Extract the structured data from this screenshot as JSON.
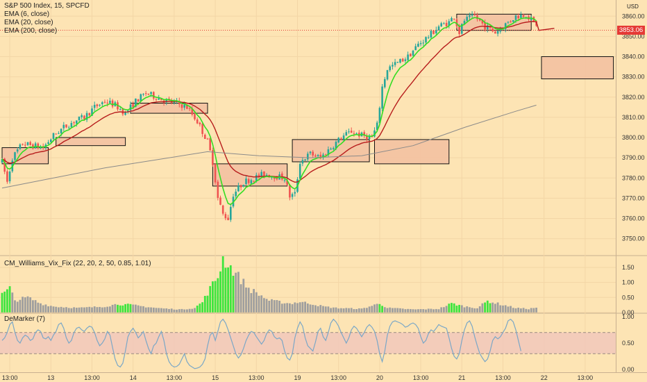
{
  "legend": {
    "symbol": "S&P 500 Index, 15, SPCFD",
    "ema6": "EMA (6, close)",
    "ema20": "EMA (20, close)",
    "ema200": "EMA (200, close)",
    "vix": "CM_Williams_Vix_Fix (22, 20, 2, 50, 0.85, 1.01)",
    "demarker": "DeMarker (7)"
  },
  "axis": {
    "currency": "USD",
    "last_price": "3853.06"
  },
  "colors": {
    "background": "#fde4b4",
    "up": "#26a69a",
    "down": "#ef5350",
    "ema6": "#33dd22",
    "ema20": "#b71c1c",
    "ema200": "#8a8a8a",
    "box_fill": "#f2bfa0",
    "vix_gray": "#9e9e9e",
    "vix_green": "#3ee53e",
    "demarker_line": "#7aa7c7",
    "demarker_band": "#f0c6bc"
  },
  "chart_data": [
    {
      "type": "candlestick",
      "title": "S&P 500 Index, 15, SPCFD",
      "ylim": [
        3743,
        3868
      ],
      "yticks": [
        3750,
        3760,
        3770,
        3780,
        3790,
        3800,
        3810,
        3820,
        3830,
        3840,
        3850,
        3860
      ],
      "ytick_labels": [
        "3750.00",
        "3760.00",
        "3770.00",
        "3780.00",
        "3790.00",
        "3800.00",
        "3810.00",
        "3820.00",
        "3830.00",
        "3840.00",
        "3850.00",
        "3860.00"
      ],
      "xtick_labels": [
        "13:00",
        "13",
        "13:00",
        "14",
        "13:00",
        "15",
        "13:00",
        "19",
        "13:00",
        "20",
        "13:00",
        "21",
        "13:00",
        "22",
        "13:00"
      ],
      "xtick_index": [
        3,
        19,
        35,
        51,
        67,
        83,
        99,
        115,
        131,
        147,
        163,
        179,
        195,
        211,
        227
      ],
      "bars": 209,
      "price_path": [
        [
          0,
          3788
        ],
        [
          2,
          3778
        ],
        [
          4,
          3790
        ],
        [
          8,
          3797
        ],
        [
          12,
          3796
        ],
        [
          16,
          3795
        ],
        [
          20,
          3801
        ],
        [
          24,
          3805
        ],
        [
          28,
          3808
        ],
        [
          32,
          3810
        ],
        [
          36,
          3815
        ],
        [
          40,
          3818
        ],
        [
          44,
          3816
        ],
        [
          48,
          3812
        ],
        [
          52,
          3818
        ],
        [
          56,
          3822
        ],
        [
          60,
          3820
        ],
        [
          64,
          3818
        ],
        [
          68,
          3817
        ],
        [
          72,
          3815
        ],
        [
          76,
          3808
        ],
        [
          80,
          3798
        ],
        [
          82,
          3788
        ],
        [
          84,
          3770
        ],
        [
          86,
          3762
        ],
        [
          88,
          3760
        ],
        [
          90,
          3772
        ],
        [
          94,
          3778
        ],
        [
          98,
          3780
        ],
        [
          102,
          3782
        ],
        [
          106,
          3781
        ],
        [
          110,
          3780
        ],
        [
          112,
          3771
        ],
        [
          114,
          3772
        ],
        [
          116,
          3788
        ],
        [
          120,
          3792
        ],
        [
          124,
          3790
        ],
        [
          128,
          3795
        ],
        [
          132,
          3800
        ],
        [
          136,
          3803
        ],
        [
          140,
          3801
        ],
        [
          144,
          3800
        ],
        [
          146,
          3806
        ],
        [
          148,
          3825
        ],
        [
          150,
          3834
        ],
        [
          154,
          3837
        ],
        [
          158,
          3840
        ],
        [
          162,
          3846
        ],
        [
          166,
          3850
        ],
        [
          170,
          3855
        ],
        [
          174,
          3857
        ],
        [
          176,
          3860
        ],
        [
          178,
          3852
        ],
        [
          180,
          3858
        ],
        [
          184,
          3860
        ],
        [
          188,
          3855
        ],
        [
          192,
          3852
        ],
        [
          196,
          3856
        ],
        [
          200,
          3860
        ],
        [
          204,
          3861
        ],
        [
          206,
          3858
        ],
        [
          208,
          3856
        ]
      ],
      "ema200_path": [
        [
          0,
          3775
        ],
        [
          40,
          3785
        ],
        [
          80,
          3793
        ],
        [
          100,
          3791
        ],
        [
          120,
          3790
        ],
        [
          140,
          3791
        ],
        [
          160,
          3796
        ],
        [
          180,
          3805
        ],
        [
          200,
          3813
        ],
        [
          208,
          3816
        ]
      ],
      "ema20_end": [
        209,
        3853
      ],
      "last_price": 3853.06,
      "boxes": [
        {
          "i0": 0,
          "i1": 18,
          "hi": 3795,
          "lo": 3787
        },
        {
          "i0": 21,
          "i1": 48,
          "hi": 3800,
          "lo": 3796
        },
        {
          "i0": 50,
          "i1": 80,
          "hi": 3817,
          "lo": 3812
        },
        {
          "i0": 82,
          "i1": 111,
          "hi": 3787,
          "lo": 3776
        },
        {
          "i0": 113,
          "i1": 143,
          "hi": 3799,
          "lo": 3788
        },
        {
          "i0": 145,
          "i1": 174,
          "hi": 3799,
          "lo": 3787
        },
        {
          "i0": 177,
          "i1": 206,
          "hi": 3861,
          "lo": 3853
        },
        {
          "i0": 210,
          "i1": 238,
          "hi": 3840,
          "lo": 3829
        }
      ]
    },
    {
      "type": "bar",
      "title": "CM_Williams_Vix_Fix (22, 20, 2, 50, 0.85, 1.01)",
      "ylim": [
        -0.05,
        1.85
      ],
      "yticks": [
        0,
        0.5,
        1,
        1.5
      ],
      "ytick_labels": [
        "0.00",
        "0.50",
        "1.00",
        "1.50"
      ],
      "green_ranges": [
        [
          0,
          3
        ],
        [
          45,
          50
        ],
        [
          76,
          90
        ],
        [
          147,
          148
        ],
        [
          174,
          178
        ],
        [
          188,
          190
        ]
      ],
      "value_path": [
        [
          0,
          0.6
        ],
        [
          3,
          0.8
        ],
        [
          5,
          0.4
        ],
        [
          10,
          0.5
        ],
        [
          15,
          0.3
        ],
        [
          20,
          0.2
        ],
        [
          30,
          0.15
        ],
        [
          40,
          0.2
        ],
        [
          45,
          0.28
        ],
        [
          50,
          0.25
        ],
        [
          55,
          0.2
        ],
        [
          60,
          0.15
        ],
        [
          65,
          0.12
        ],
        [
          70,
          0.1
        ],
        [
          75,
          0.15
        ],
        [
          78,
          0.35
        ],
        [
          81,
          0.8
        ],
        [
          84,
          1.2
        ],
        [
          86,
          1.8
        ],
        [
          88,
          1.6
        ],
        [
          90,
          1.4
        ],
        [
          92,
          1.2
        ],
        [
          94,
          1.0
        ],
        [
          96,
          0.8
        ],
        [
          100,
          0.6
        ],
        [
          104,
          0.4
        ],
        [
          108,
          0.35
        ],
        [
          112,
          0.3
        ],
        [
          116,
          0.35
        ],
        [
          120,
          0.3
        ],
        [
          125,
          0.2
        ],
        [
          130,
          0.15
        ],
        [
          140,
          0.12
        ],
        [
          147,
          0.3
        ],
        [
          150,
          0.15
        ],
        [
          160,
          0.1
        ],
        [
          170,
          0.12
        ],
        [
          175,
          0.3
        ],
        [
          180,
          0.2
        ],
        [
          185,
          0.15
        ],
        [
          189,
          0.38
        ],
        [
          195,
          0.25
        ],
        [
          200,
          0.15
        ],
        [
          205,
          0.12
        ],
        [
          209,
          0.18
        ]
      ]
    },
    {
      "type": "line",
      "title": "DeMarker (7)",
      "ylim": [
        -0.05,
        1.05
      ],
      "yticks": [
        0,
        0.5,
        1
      ],
      "ytick_labels": [
        "0.00",
        "0.50",
        "1.00"
      ],
      "bands": [
        0.3,
        0.7
      ],
      "values": [
        0.55,
        0.6,
        0.7,
        0.85,
        0.9,
        0.7,
        0.55,
        0.5,
        0.6,
        0.65,
        0.62,
        0.55,
        0.58,
        0.7,
        0.75,
        0.72,
        0.6,
        0.58,
        0.62,
        0.55,
        0.65,
        0.72,
        0.85,
        0.88,
        0.78,
        0.6,
        0.5,
        0.55,
        0.7,
        0.78,
        0.8,
        0.75,
        0.72,
        0.78,
        0.82,
        0.8,
        0.7,
        0.55,
        0.45,
        0.5,
        0.58,
        0.72,
        0.65,
        0.42,
        0.2,
        0.08,
        0.05,
        0.12,
        0.35,
        0.62,
        0.72,
        0.78,
        0.7,
        0.6,
        0.65,
        0.72,
        0.55,
        0.4,
        0.3,
        0.45,
        0.5,
        0.62,
        0.72,
        0.55,
        0.3,
        0.15,
        0.08,
        0.05,
        0.06,
        0.1,
        0.2,
        0.3,
        0.15,
        0.08,
        0.05,
        0.02,
        0.03,
        0.05,
        0.1,
        0.2,
        0.45,
        0.65,
        0.7,
        0.55,
        0.72,
        0.9,
        0.95,
        0.88,
        0.75,
        0.6,
        0.45,
        0.3,
        0.22,
        0.28,
        0.4,
        0.55,
        0.65,
        0.72,
        0.7,
        0.62,
        0.55,
        0.48,
        0.55,
        0.68,
        0.75,
        0.72,
        0.62,
        0.58,
        0.6,
        0.55,
        0.35,
        0.22,
        0.18,
        0.3,
        0.6,
        0.78,
        0.9,
        0.82,
        0.6,
        0.45,
        0.4,
        0.35,
        0.52,
        0.72,
        0.78,
        0.62,
        0.55,
        0.7,
        0.88,
        0.95,
        0.9,
        0.82,
        0.7,
        0.6,
        0.5,
        0.6,
        0.75,
        0.82,
        0.78,
        0.7,
        0.62,
        0.7,
        0.8,
        0.85,
        0.8,
        0.72,
        0.55,
        0.3,
        0.15,
        0.35,
        0.65,
        0.82,
        0.9,
        0.92,
        0.9,
        0.88,
        0.85,
        0.8,
        0.82,
        0.86,
        0.88,
        0.85,
        0.78,
        0.62,
        0.5,
        0.55,
        0.68,
        0.75,
        0.72,
        0.78,
        0.85,
        0.82,
        0.8,
        0.78,
        0.6,
        0.4,
        0.25,
        0.2,
        0.3,
        0.55,
        0.75,
        0.88,
        0.92,
        0.82,
        0.62,
        0.45,
        0.3,
        0.22,
        0.15,
        0.2,
        0.35,
        0.55,
        0.62,
        0.58,
        0.62,
        0.7,
        0.78,
        0.92,
        0.95,
        0.9,
        0.75,
        0.55,
        0.35
      ]
    }
  ]
}
